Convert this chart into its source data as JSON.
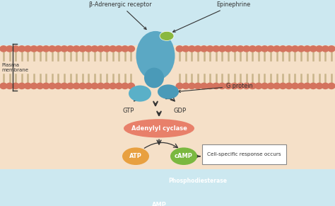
{
  "bg_top_color": "#cce8f0",
  "bg_bottom_color": "#f5e0c8",
  "membrane_lipid_color_head": "#d4735e",
  "membrane_lipid_color_tail": "#c8b48a",
  "receptor_color": "#5ba8c4",
  "receptor_color2": "#4a9ab8",
  "epinephrine_color": "#8ab840",
  "adenylyl_color": "#e8806a",
  "atp_color": "#e8a040",
  "camp_color": "#7ab840",
  "amp_color": "#9898c8",
  "phosphodiesterase_color": "#90b840",
  "arrow_color": "#333333",
  "text_color": "#333333",
  "label_receptor": "β-Adrenergic receptor",
  "label_epinephrine": "Epinephrine",
  "label_plasma": "Plasma\nmembrane",
  "label_gprotein": "G protein",
  "label_gtp": "GTP",
  "label_gdp": "GDP",
  "label_adenylyl": "Adenylyl cyclase",
  "label_atp": "ATP",
  "label_camp": "cAMP",
  "label_amp": "AMP",
  "label_phosphodiesterase": "Phosphodiesterase",
  "label_cell_response": "Cell-specific response occurs",
  "fig_width": 4.74,
  "fig_height": 2.91,
  "dpi": 100
}
